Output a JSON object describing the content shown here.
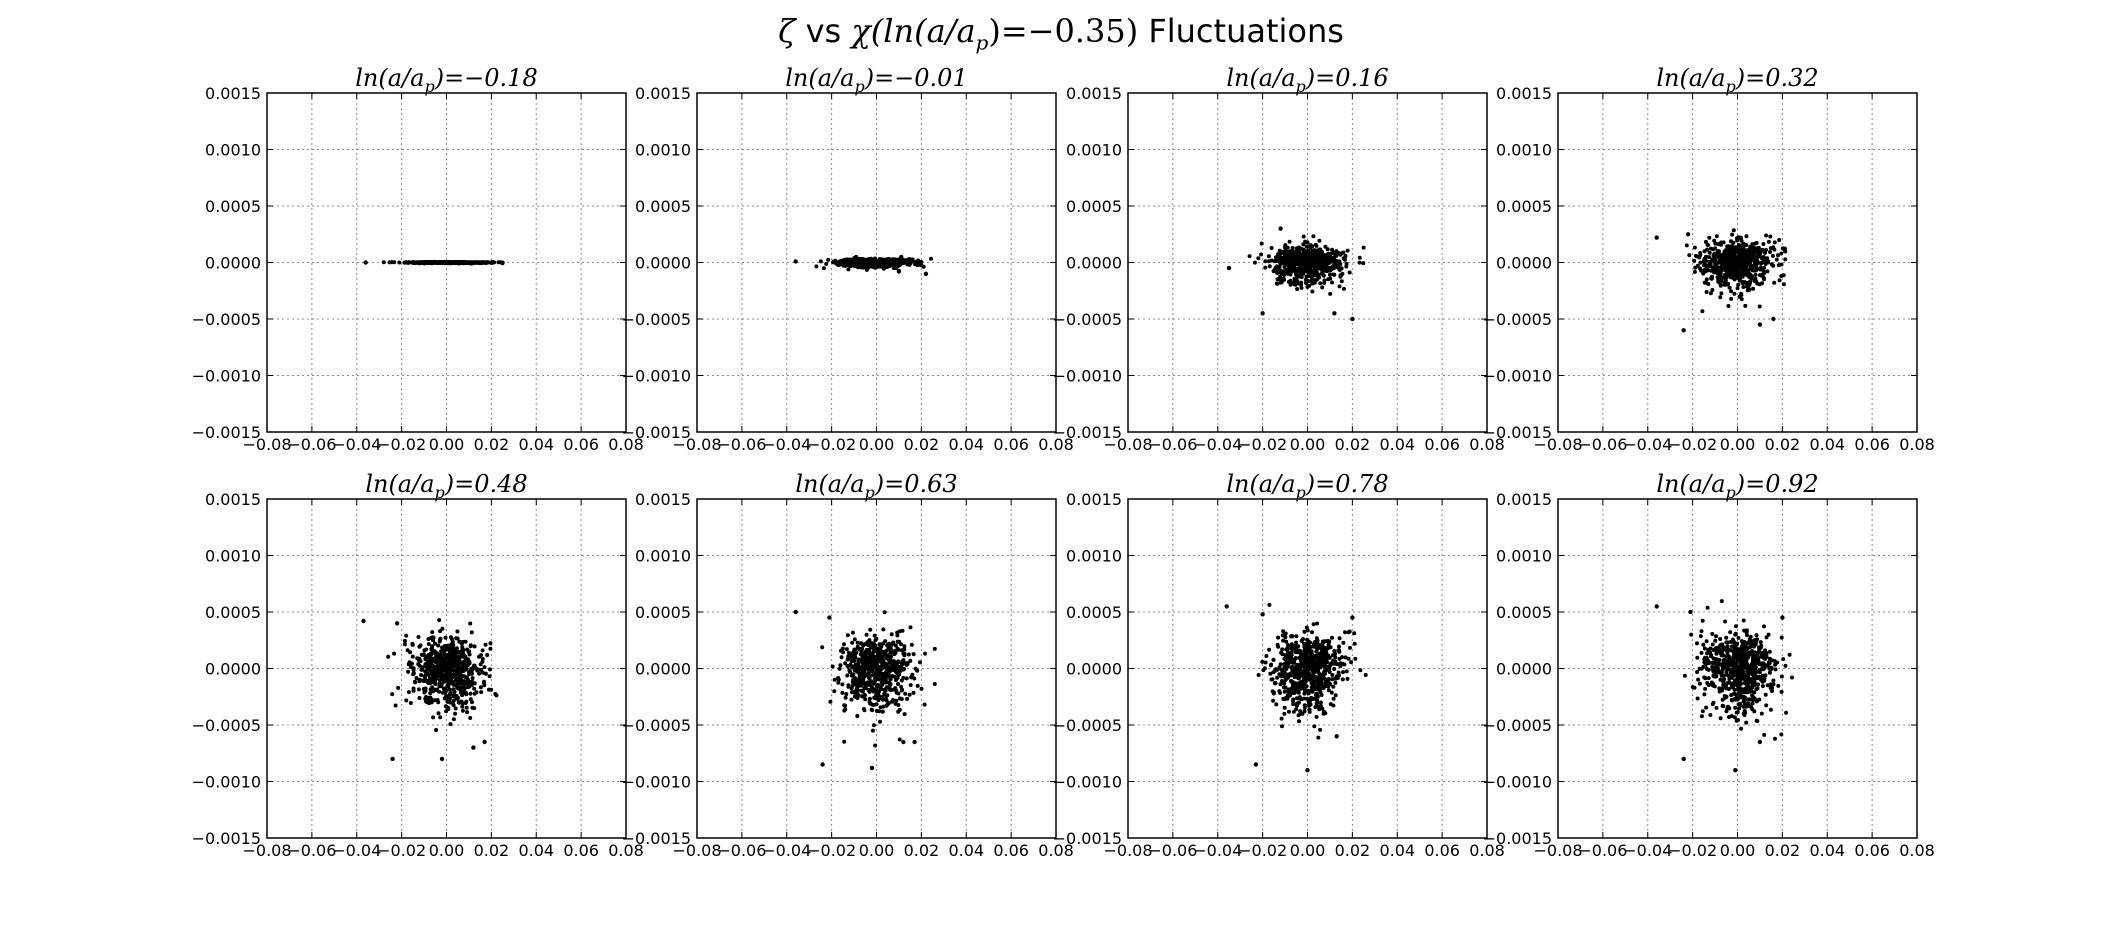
{
  "figure": {
    "title_parts": [
      "ζ",
      " vs ",
      "χ(ln(a/a",
      "p",
      ")=−0.35)",
      " Fluctuations"
    ],
    "colors": {
      "axes": "#000000",
      "grid": "#888888",
      "points": "#000000",
      "background": "#ffffff"
    }
  },
  "chart_data": [
    {
      "type": "scatter",
      "title_prefix": "ln(a/a",
      "title_sub": "p",
      "title_value": ")=−0.18",
      "xlim": [
        -0.08,
        0.08
      ],
      "ylim": [
        -0.0015,
        0.0015
      ],
      "xticks": [
        "−0.08",
        "−0.06",
        "−0.04",
        "−0.02",
        "0.00",
        "0.02",
        "0.04",
        "0.06",
        "0.08"
      ],
      "yticks": [
        "0.0015",
        "0.0010",
        "0.0005",
        "0.0000",
        "−0.0005",
        "−0.0010",
        "−0.0015"
      ],
      "cluster": {
        "x_center": 0.0,
        "x_spread": 0.0085,
        "x_min": -0.028,
        "x_max": 0.025,
        "y_spread": 2e-06,
        "n_points": 600,
        "outliers": [
          [
            -0.036,
            0.0
          ]
        ]
      }
    },
    {
      "type": "scatter",
      "title_prefix": "ln(a/a",
      "title_sub": "p",
      "title_value": ")=−0.01",
      "xlim": [
        -0.08,
        0.08
      ],
      "ylim": [
        -0.0015,
        0.0015
      ],
      "xticks": [
        "−0.08",
        "−0.06",
        "−0.04",
        "−0.02",
        "0.00",
        "0.02",
        "0.04",
        "0.06",
        "0.08"
      ],
      "yticks": [
        "0.0015",
        "0.0010",
        "0.0005",
        "0.0000",
        "−0.0005",
        "−0.0010",
        "−0.0015"
      ],
      "cluster": {
        "x_center": 0.0,
        "x_spread": 0.008,
        "x_min": -0.028,
        "x_max": 0.025,
        "y_spread": 1.5e-05,
        "n_points": 600,
        "outliers": [
          [
            -0.036,
            1e-05
          ],
          [
            0.022,
            -0.0001
          ],
          [
            0.01,
            -8e-05
          ]
        ]
      }
    },
    {
      "type": "scatter",
      "title_prefix": "ln(a/a",
      "title_sub": "p",
      "title_value": ")=0.16",
      "xlim": [
        -0.08,
        0.08
      ],
      "ylim": [
        -0.0015,
        0.0015
      ],
      "xticks": [
        "−0.08",
        "−0.06",
        "−0.04",
        "−0.02",
        "0.00",
        "0.02",
        "0.04",
        "0.06",
        "0.08"
      ],
      "yticks": [
        "0.0015",
        "0.0010",
        "0.0005",
        "0.0000",
        "−0.0005",
        "−0.0010",
        "−0.0015"
      ],
      "cluster": {
        "x_center": 0.0,
        "x_spread": 0.008,
        "x_min": -0.026,
        "x_max": 0.025,
        "y_spread": 7e-05,
        "n_points": 600,
        "outliers": [
          [
            -0.035,
            -5e-05
          ],
          [
            -0.02,
            -0.00045
          ],
          [
            0.02,
            -0.0005
          ],
          [
            -0.012,
            0.0003
          ],
          [
            0.012,
            -0.00045
          ]
        ]
      }
    },
    {
      "type": "scatter",
      "title_prefix": "ln(a/a",
      "title_sub": "p",
      "title_value": ")=0.32",
      "xlim": [
        -0.08,
        0.08
      ],
      "ylim": [
        -0.0015,
        0.0015
      ],
      "xticks": [
        "−0.08",
        "−0.06",
        "−0.04",
        "−0.02",
        "0.00",
        "0.02",
        "0.04",
        "0.06",
        "0.08"
      ],
      "yticks": [
        "0.0015",
        "0.0010",
        "0.0005",
        "0.0000",
        "−0.0005",
        "−0.0010",
        "−0.0015"
      ],
      "cluster": {
        "x_center": 0.0,
        "x_spread": 0.008,
        "x_min": -0.026,
        "x_max": 0.025,
        "y_spread": 0.0001,
        "n_points": 600,
        "outliers": [
          [
            -0.036,
            0.00022
          ],
          [
            -0.024,
            -0.0006
          ],
          [
            0.01,
            -0.00055
          ],
          [
            0.016,
            -0.0005
          ],
          [
            -0.022,
            0.00025
          ]
        ]
      }
    },
    {
      "type": "scatter",
      "title_prefix": "ln(a/a",
      "title_sub": "p",
      "title_value": ")=0.48",
      "xlim": [
        -0.08,
        0.08
      ],
      "ylim": [
        -0.0015,
        0.0015
      ],
      "xticks": [
        "−0.08",
        "−0.06",
        "−0.04",
        "−0.02",
        "0.00",
        "0.02",
        "0.04",
        "0.06",
        "0.08"
      ],
      "yticks": [
        "0.0015",
        "0.0010",
        "0.0005",
        "0.0000",
        "−0.0005",
        "−0.0010",
        "−0.0015"
      ],
      "cluster": {
        "x_center": 0.0,
        "x_spread": 0.008,
        "x_min": -0.026,
        "x_max": 0.026,
        "y_spread": 0.00013,
        "n_points": 650,
        "outliers": [
          [
            -0.037,
            0.00042
          ],
          [
            -0.024,
            -0.0008
          ],
          [
            -0.002,
            -0.0008
          ],
          [
            0.012,
            -0.0007
          ],
          [
            0.017,
            -0.00065
          ],
          [
            -0.022,
            0.0004
          ]
        ]
      }
    },
    {
      "type": "scatter",
      "title_prefix": "ln(a/a",
      "title_sub": "p",
      "title_value": ")=0.63",
      "xlim": [
        -0.08,
        0.08
      ],
      "ylim": [
        -0.0015,
        0.0015
      ],
      "xticks": [
        "−0.08",
        "−0.06",
        "−0.04",
        "−0.02",
        "0.00",
        "0.02",
        "0.04",
        "0.06",
        "0.08"
      ],
      "yticks": [
        "0.0015",
        "0.0010",
        "0.0005",
        "0.0000",
        "−0.0005",
        "−0.0010",
        "−0.0015"
      ],
      "cluster": {
        "x_center": 0.0,
        "x_spread": 0.008,
        "x_min": -0.026,
        "x_max": 0.026,
        "y_spread": 0.00014,
        "n_points": 650,
        "outliers": [
          [
            -0.036,
            0.0005
          ],
          [
            -0.024,
            -0.00085
          ],
          [
            -0.002,
            -0.00088
          ],
          [
            0.012,
            -0.00065
          ],
          [
            0.017,
            -0.00065
          ],
          [
            -0.021,
            0.00045
          ]
        ]
      }
    },
    {
      "type": "scatter",
      "title_prefix": "ln(a/a",
      "title_sub": "p",
      "title_value": ")=0.78",
      "xlim": [
        -0.08,
        0.08
      ],
      "ylim": [
        -0.0015,
        0.0015
      ],
      "xticks": [
        "−0.08",
        "−0.06",
        "−0.04",
        "−0.02",
        "0.00",
        "0.02",
        "0.04",
        "0.06",
        "0.08"
      ],
      "yticks": [
        "0.0015",
        "0.0010",
        "0.0005",
        "0.0000",
        "−0.0005",
        "−0.0010",
        "−0.0015"
      ],
      "cluster": {
        "x_center": 0.0,
        "x_spread": 0.008,
        "x_min": -0.026,
        "x_max": 0.026,
        "y_spread": 0.00015,
        "n_points": 650,
        "outliers": [
          [
            -0.036,
            0.00055
          ],
          [
            -0.023,
            -0.00085
          ],
          [
            0.0,
            -0.0009
          ],
          [
            0.013,
            -0.0006
          ],
          [
            0.02,
            0.00045
          ],
          [
            -0.02,
            0.00048
          ]
        ]
      }
    },
    {
      "type": "scatter",
      "title_prefix": "ln(a/a",
      "title_sub": "p",
      "title_value": ")=0.92",
      "xlim": [
        -0.08,
        0.08
      ],
      "ylim": [
        -0.0015,
        0.0015
      ],
      "xticks": [
        "−0.08",
        "−0.06",
        "−0.04",
        "−0.02",
        "0.00",
        "0.02",
        "0.04",
        "0.06",
        "0.08"
      ],
      "yticks": [
        "0.0015",
        "0.0010",
        "0.0005",
        "0.0000",
        "−0.0005",
        "−0.0010",
        "−0.0015"
      ],
      "cluster": {
        "x_center": 0.0,
        "x_spread": 0.008,
        "x_min": -0.026,
        "x_max": 0.026,
        "y_spread": 0.00016,
        "n_points": 650,
        "outliers": [
          [
            -0.036,
            0.00055
          ],
          [
            -0.024,
            -0.0008
          ],
          [
            -0.001,
            -0.0009
          ],
          [
            0.01,
            -0.00065
          ],
          [
            0.02,
            0.00045
          ],
          [
            -0.021,
            0.0005
          ]
        ]
      }
    }
  ]
}
